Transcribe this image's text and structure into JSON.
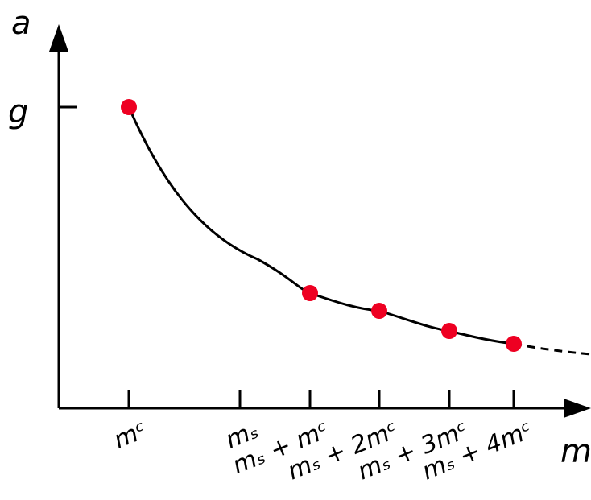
{
  "chart_data": {
    "type": "line",
    "title": "",
    "xlabel": "m",
    "ylabel": "a",
    "y_tick_labels": [
      "g"
    ],
    "x_tick_labels": [
      "mᶜ",
      "mₛ",
      "mₛ + mᶜ",
      "mₛ + 2mᶜ",
      "mₛ + 3mᶜ",
      "mₛ + 4mᶜ"
    ],
    "points": [
      {
        "x": "mᶜ",
        "y": "g"
      },
      {
        "x": "mₛ + mᶜ",
        "y": ""
      },
      {
        "x": "mₛ + 2mᶜ",
        "y": ""
      },
      {
        "x": "mₛ + 3mᶜ",
        "y": ""
      },
      {
        "x": "mₛ + 4mᶜ",
        "y": ""
      }
    ],
    "curve": "decreasing hyperbola-like, dashed continuation after last point",
    "grid": false,
    "colors": {
      "axes": "#000000",
      "curve": "#000000",
      "points": "#ee0022"
    }
  }
}
